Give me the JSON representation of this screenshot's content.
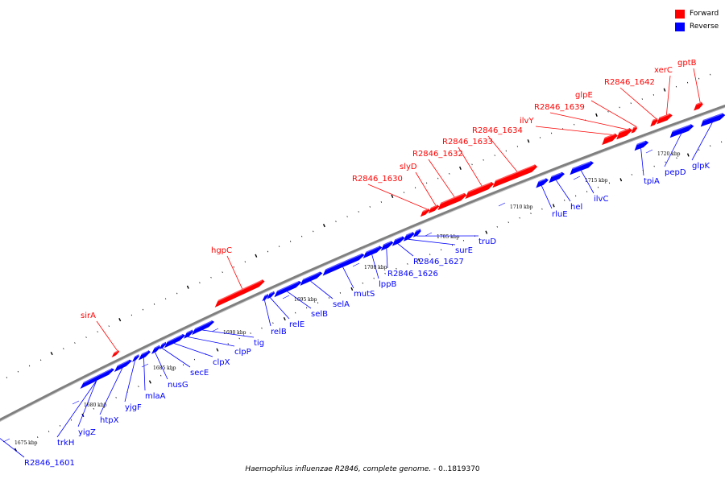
{
  "legend": {
    "forward": {
      "label": "Forward",
      "color": "#ff0000"
    },
    "reverse": {
      "label": "Reverse",
      "color": "#0000ff"
    }
  },
  "caption": {
    "organism": "Haemophilus influenzae R2846, complete genome.",
    "range": " - 0..1819370"
  },
  "colors": {
    "forward": "#ff0000",
    "reverse": "#0000ff",
    "backbone": "#808080"
  },
  "scale_labels": [
    "1675 kbp",
    "1680 kbp",
    "1685 kbp",
    "1690 kbp",
    "1695 kbp",
    "1700 kbp",
    "1705 kbp",
    "1710 kbp",
    "1715 kbp",
    "1720 kbp"
  ],
  "genes": [
    {
      "name": "R2846_1601",
      "strand": "reverse"
    },
    {
      "name": "trkH",
      "strand": "reverse"
    },
    {
      "name": "yigZ",
      "strand": "reverse"
    },
    {
      "name": "htpX",
      "strand": "reverse"
    },
    {
      "name": "yjgF",
      "strand": "reverse"
    },
    {
      "name": "mlaA",
      "strand": "reverse"
    },
    {
      "name": "nusG",
      "strand": "reverse"
    },
    {
      "name": "secE",
      "strand": "reverse"
    },
    {
      "name": "clpX",
      "strand": "reverse"
    },
    {
      "name": "clpP",
      "strand": "reverse"
    },
    {
      "name": "tig",
      "strand": "reverse"
    },
    {
      "name": "sirA",
      "strand": "forward"
    },
    {
      "name": "hgpC",
      "strand": "forward"
    },
    {
      "name": "relB",
      "strand": "reverse"
    },
    {
      "name": "relE",
      "strand": "reverse"
    },
    {
      "name": "selB",
      "strand": "reverse"
    },
    {
      "name": "selA",
      "strand": "reverse"
    },
    {
      "name": "mutS",
      "strand": "reverse"
    },
    {
      "name": "lppB",
      "strand": "reverse"
    },
    {
      "name": "R2846_1626",
      "strand": "reverse"
    },
    {
      "name": "R2846_1627",
      "strand": "reverse"
    },
    {
      "name": "surE",
      "strand": "reverse"
    },
    {
      "name": "truD",
      "strand": "reverse"
    },
    {
      "name": "R2846_1630",
      "strand": "forward"
    },
    {
      "name": "slyD",
      "strand": "forward"
    },
    {
      "name": "R2846_1632",
      "strand": "forward"
    },
    {
      "name": "R2846_1633",
      "strand": "forward"
    },
    {
      "name": "R2846_1634",
      "strand": "forward"
    },
    {
      "name": "ilvY",
      "strand": "forward"
    },
    {
      "name": "R2846_1639",
      "strand": "forward"
    },
    {
      "name": "glpE",
      "strand": "forward"
    },
    {
      "name": "R2846_1642",
      "strand": "forward"
    },
    {
      "name": "xerC",
      "strand": "forward"
    },
    {
      "name": "gptB",
      "strand": "forward"
    },
    {
      "name": "rluE",
      "strand": "reverse"
    },
    {
      "name": "hel",
      "strand": "reverse"
    },
    {
      "name": "ilvC",
      "strand": "reverse"
    },
    {
      "name": "tpiA",
      "strand": "reverse"
    },
    {
      "name": "pepD",
      "strand": "reverse"
    },
    {
      "name": "glpK",
      "strand": "reverse"
    }
  ]
}
